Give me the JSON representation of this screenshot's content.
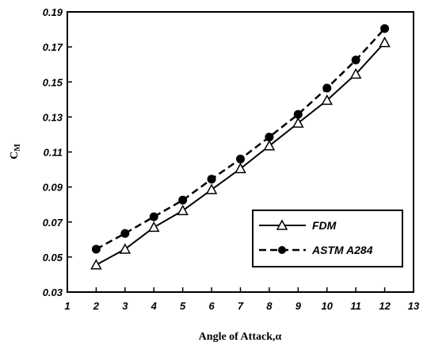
{
  "chart_data": {
    "type": "line",
    "title": "",
    "xlabel": "Angle of Attack,α",
    "ylabel_main": "C",
    "ylabel_sub": "M",
    "xlim": [
      1,
      13
    ],
    "ylim": [
      0.03,
      0.19
    ],
    "x_ticks": [
      "1",
      "2",
      "3",
      "4",
      "5",
      "6",
      "7",
      "8",
      "9",
      "10",
      "11",
      "12",
      "13"
    ],
    "y_ticks": [
      "0.03",
      "0.05",
      "0.07",
      "0.09",
      "0.11",
      "0.13",
      "0.15",
      "0.17",
      "0.19"
    ],
    "grid": false,
    "legend_position": "lower-right",
    "x": [
      2,
      3,
      4,
      5,
      6,
      7,
      8,
      9,
      10,
      11,
      12
    ],
    "series": [
      {
        "name": "FDM",
        "marker": "open-triangle",
        "line": "solid",
        "values": [
          0.0455,
          0.0545,
          0.067,
          0.0765,
          0.0885,
          0.1005,
          0.1135,
          0.1265,
          0.1395,
          0.1545,
          0.1725
        ]
      },
      {
        "name": "ASTM A284",
        "marker": "filled-circle",
        "line": "dashed",
        "values": [
          0.0545,
          0.0635,
          0.073,
          0.0825,
          0.0945,
          0.106,
          0.1185,
          0.1315,
          0.1465,
          0.1625,
          0.1805
        ]
      }
    ]
  }
}
